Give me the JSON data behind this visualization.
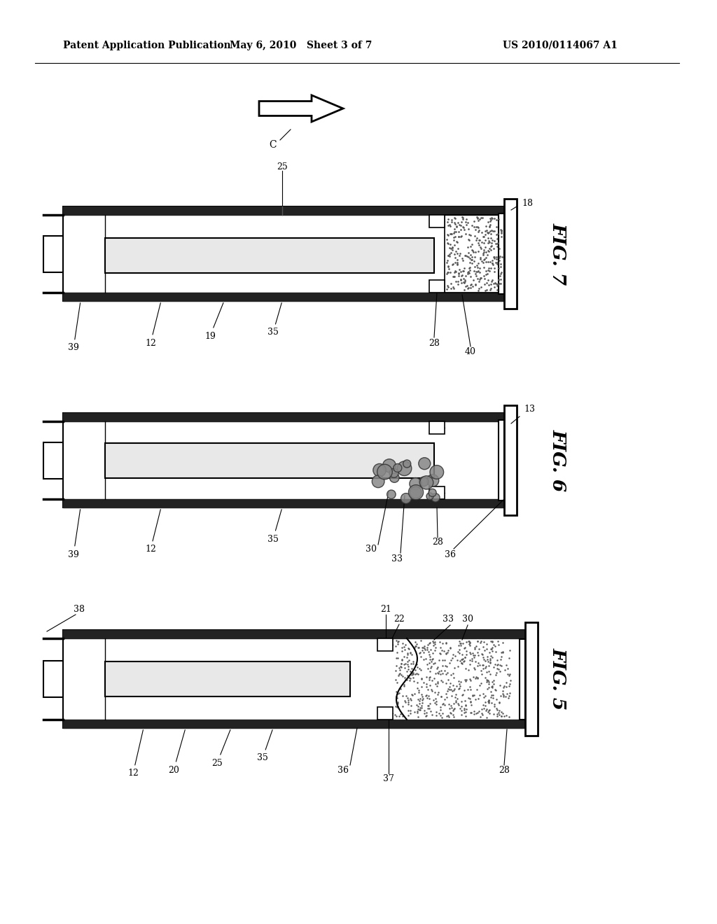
{
  "bg_color": "#ffffff",
  "line_color": "#000000",
  "header_left": "Patent Application Publication",
  "header_mid": "May 6, 2010   Sheet 3 of 7",
  "header_right": "US 2010/0114067 A1",
  "fig7_label": "FIG. 7",
  "fig6_label": "FIG. 6",
  "fig5_label": "FIG. 5"
}
